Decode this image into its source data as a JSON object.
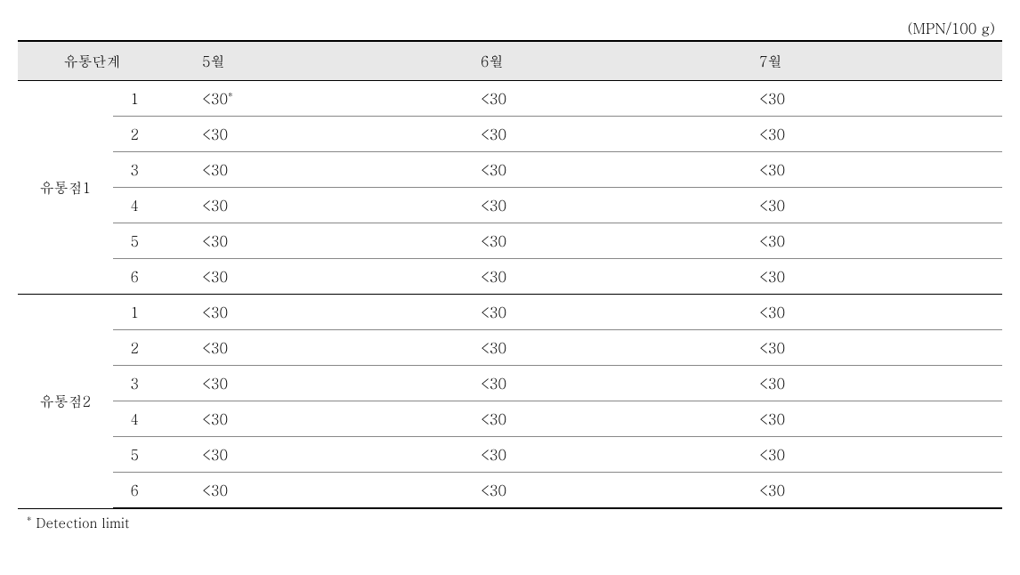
{
  "unit_label": "(MPN/100 g)",
  "columns": {
    "stage": "유통단계",
    "m5": "5월",
    "m6": "6월",
    "m7": "7월"
  },
  "groups": [
    {
      "name": "유통점1",
      "rows": [
        {
          "n": "1",
          "m5": "<30*",
          "m6": "<30",
          "m7": "<30"
        },
        {
          "n": "2",
          "m5": "<30",
          "m6": "<30",
          "m7": "<30"
        },
        {
          "n": "3",
          "m5": "<30",
          "m6": "<30",
          "m7": "<30"
        },
        {
          "n": "4",
          "m5": "<30",
          "m6": "<30",
          "m7": "<30"
        },
        {
          "n": "5",
          "m5": "<30",
          "m6": "<30",
          "m7": "<30"
        },
        {
          "n": "6",
          "m5": "<30",
          "m6": "<30",
          "m7": "<30"
        }
      ]
    },
    {
      "name": "유통점2",
      "rows": [
        {
          "n": "1",
          "m5": "<30",
          "m6": "<30",
          "m7": "<30"
        },
        {
          "n": "2",
          "m5": "<30",
          "m6": "<30",
          "m7": "<30"
        },
        {
          "n": "3",
          "m5": "<30",
          "m6": "<30",
          "m7": "<30"
        },
        {
          "n": "4",
          "m5": "<30",
          "m6": "<30",
          "m7": "<30"
        },
        {
          "n": "5",
          "m5": "<30",
          "m6": "<30",
          "m7": "<30"
        },
        {
          "n": "6",
          "m5": "<30",
          "m6": "<30",
          "m7": "<30"
        }
      ]
    }
  ],
  "footnote_marker": "*",
  "footnote_text": "Detection limit",
  "style": {
    "header_bg": "#e8e8e8",
    "border_heavy": "#000000",
    "border_light": "#888888",
    "font_size_body": 16,
    "font_size_footnote": 15
  }
}
